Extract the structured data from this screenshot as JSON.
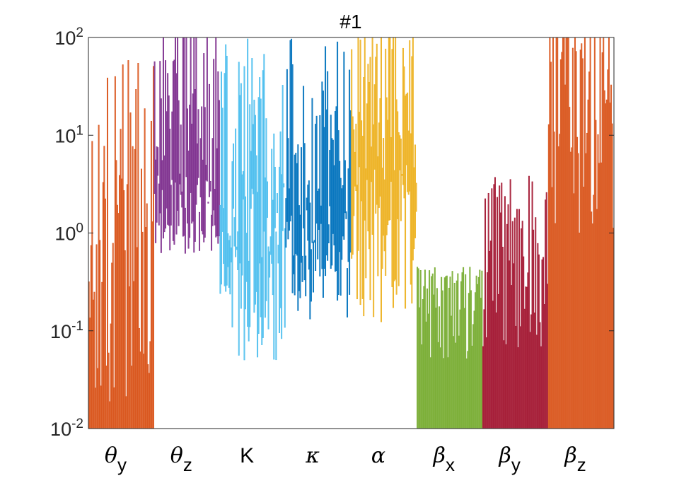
{
  "chart_data": {
    "type": "bar",
    "title": "#1",
    "yscale": "log",
    "ylim": [
      0.01,
      100
    ],
    "yticks": [
      {
        "base": "10",
        "exp": "-2"
      },
      {
        "base": "10",
        "exp": "-1"
      },
      {
        "base": "10",
        "exp": "0"
      },
      {
        "base": "10",
        "exp": "1"
      },
      {
        "base": "10",
        "exp": "2"
      }
    ],
    "categories": [
      {
        "symbol": "θ",
        "sub": "y"
      },
      {
        "symbol": "θ",
        "sub": "z"
      },
      {
        "symbol": "K",
        "sub": ""
      },
      {
        "symbol": "κ",
        "sub": ""
      },
      {
        "symbol": "α",
        "sub": ""
      },
      {
        "symbol": "β",
        "sub": "x"
      },
      {
        "symbol": "β",
        "sub": "y"
      },
      {
        "symbol": "β",
        "sub": "z"
      }
    ],
    "groups": [
      {
        "color": "#D95319",
        "bars": 60,
        "low": 0.01,
        "high": 10,
        "max_spike": 60,
        "floor": "axis"
      },
      {
        "color": "#7E2F8E",
        "bars": 60,
        "low": 1.5,
        "high": 100,
        "max_spike": 100,
        "floor": "value",
        "floor_range": [
          0.6,
          4
        ]
      },
      {
        "color": "#4DBEEE",
        "bars": 60,
        "low": 0.5,
        "high": 20,
        "max_spike": 100,
        "floor": "value",
        "floor_range": [
          0.05,
          3
        ]
      },
      {
        "color": "#0072BD",
        "bars": 60,
        "low": 0.4,
        "high": 20,
        "max_spike": 100,
        "floor": "value",
        "floor_range": [
          0.13,
          2
        ]
      },
      {
        "color": "#EDB120",
        "bars": 60,
        "low": 3,
        "high": 100,
        "max_spike": 100,
        "floor": "value",
        "floor_range": [
          0.12,
          5
        ]
      },
      {
        "color": "#77AC30",
        "bars": 60,
        "low": 0.05,
        "high": 0.35,
        "max_spike": 0.45,
        "floor": "axis"
      },
      {
        "color": "#A2142F",
        "bars": 60,
        "low": 0.06,
        "high": 2,
        "max_spike": 4,
        "floor": "axis"
      },
      {
        "color": "#D95319",
        "bars": 60,
        "low": 1,
        "high": 100,
        "max_spike": 100,
        "floor": "axis"
      }
    ]
  }
}
